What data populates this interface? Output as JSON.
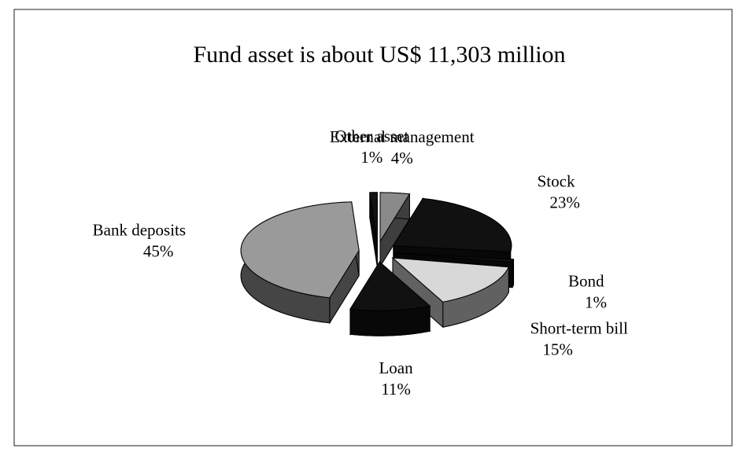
{
  "chart_data": {
    "type": "pie",
    "title": "Fund asset is about US$ 11,303 million",
    "categories": [
      "External management",
      "Stock",
      "Bond",
      "Short-term bill",
      "Loan",
      "Bank deposits",
      "Other asset"
    ],
    "values": [
      4,
      23,
      1,
      15,
      11,
      45,
      1
    ],
    "value_labels": [
      "4%",
      "23%",
      "1%",
      "15%",
      "11%",
      "45%",
      "1%"
    ],
    "colors": [
      "#8a8a8a",
      "#111111",
      "#111111",
      "#d8d8d8",
      "#111111",
      "#9a9a9a",
      "#111111"
    ]
  }
}
